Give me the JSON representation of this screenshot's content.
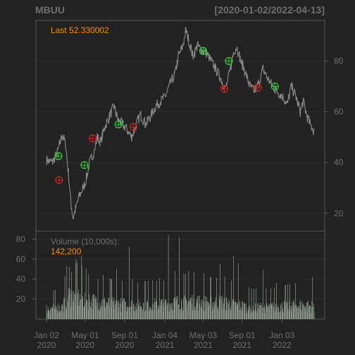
{
  "header": {
    "symbol": "MBUU",
    "date_range": "[2020-01-02/2022-04-13]"
  },
  "colors": {
    "background": "#222222",
    "price_line": "#8a8a8a",
    "grid": "#2c2c2c",
    "frame": "#555555",
    "buy_marker": "#33cc33",
    "sell_marker": "#cc2222",
    "text": "#6e6e6e",
    "highlight": "#ff8c00",
    "volume_bar": "#8f9a8f"
  },
  "chart_data": [
    {
      "type": "line",
      "panel": "price",
      "last_label": "Last 52.330002",
      "ylim": [
        13,
        96
      ],
      "yticks": [
        20,
        40,
        60,
        80
      ],
      "grid": true,
      "xticks": [
        {
          "date": "2020-01-02",
          "line1": "Jan 02",
          "line2": "2020"
        },
        {
          "date": "2020-05-01",
          "line1": "May 01",
          "line2": "2020"
        },
        {
          "date": "2020-09-01",
          "line1": "Sep 01",
          "line2": "2020"
        },
        {
          "date": "2021-01-04",
          "line1": "Jan 04",
          "line2": "2021"
        },
        {
          "date": "2021-05-03",
          "line1": "May 03",
          "line2": "2021"
        },
        {
          "date": "2021-09-01",
          "line1": "Sep 01",
          "line2": "2021"
        },
        {
          "date": "2022-01-03",
          "line1": "Jan 03",
          "line2": "2022"
        }
      ],
      "series": [
        {
          "values": [
            [
              "2020-01-02",
              41
            ],
            [
              "2020-01-20",
              40
            ],
            [
              "2020-02-05",
              44
            ],
            [
              "2020-02-20",
              51
            ],
            [
              "2020-03-02",
              47
            ],
            [
              "2020-03-10",
              36
            ],
            [
              "2020-03-18",
              24
            ],
            [
              "2020-03-25",
              18
            ],
            [
              "2020-04-02",
              22
            ],
            [
              "2020-04-14",
              27
            ],
            [
              "2020-04-25",
              30
            ],
            [
              "2020-05-05",
              34
            ],
            [
              "2020-05-15",
              40
            ],
            [
              "2020-05-28",
              44
            ],
            [
              "2020-06-08",
              50
            ],
            [
              "2020-06-18",
              48
            ],
            [
              "2020-07-01",
              54
            ],
            [
              "2020-07-15",
              58
            ],
            [
              "2020-07-30",
              62
            ],
            [
              "2020-08-10",
              57
            ],
            [
              "2020-08-25",
              55
            ],
            [
              "2020-09-08",
              53
            ],
            [
              "2020-09-22",
              50
            ],
            [
              "2020-10-05",
              54
            ],
            [
              "2020-10-20",
              59
            ],
            [
              "2020-11-05",
              55
            ],
            [
              "2020-11-20",
              58
            ],
            [
              "2020-12-05",
              62
            ],
            [
              "2020-12-20",
              64
            ],
            [
              "2021-01-05",
              66
            ],
            [
              "2021-01-20",
              71
            ],
            [
              "2021-02-05",
              75
            ],
            [
              "2021-02-15",
              82
            ],
            [
              "2021-03-01",
              86
            ],
            [
              "2021-03-10",
              92
            ],
            [
              "2021-03-20",
              88
            ],
            [
              "2021-04-01",
              82
            ],
            [
              "2021-04-15",
              86
            ],
            [
              "2021-05-01",
              84
            ],
            [
              "2021-05-15",
              83
            ],
            [
              "2021-06-01",
              79
            ],
            [
              "2021-06-15",
              76
            ],
            [
              "2021-07-01",
              72
            ],
            [
              "2021-07-12",
              69
            ],
            [
              "2021-07-25",
              76
            ],
            [
              "2021-08-05",
              83
            ],
            [
              "2021-08-15",
              86
            ],
            [
              "2021-08-28",
              80
            ],
            [
              "2021-09-10",
              76
            ],
            [
              "2021-09-25",
              70
            ],
            [
              "2021-10-10",
              68
            ],
            [
              "2021-10-25",
              72
            ],
            [
              "2021-11-05",
              77
            ],
            [
              "2021-11-20",
              73
            ],
            [
              "2021-12-05",
              70
            ],
            [
              "2021-12-20",
              68
            ],
            [
              "2022-01-05",
              66
            ],
            [
              "2022-01-20",
              63
            ],
            [
              "2022-02-01",
              70
            ],
            [
              "2022-02-15",
              66
            ],
            [
              "2022-03-01",
              60
            ],
            [
              "2022-03-10",
              64
            ],
            [
              "2022-03-22",
              58
            ],
            [
              "2022-04-01",
              55
            ],
            [
              "2022-04-13",
              52.33
            ]
          ]
        }
      ],
      "signals": [
        {
          "date": "2020-02-08",
          "value": 42.5,
          "kind": "buy"
        },
        {
          "date": "2020-02-10",
          "value": 33,
          "kind": "sell"
        },
        {
          "date": "2020-04-29",
          "value": 39,
          "kind": "buy"
        },
        {
          "date": "2020-05-25",
          "value": 49.5,
          "kind": "sell"
        },
        {
          "date": "2020-08-13",
          "value": 55,
          "kind": "buy"
        },
        {
          "date": "2020-09-28",
          "value": 54,
          "kind": "sell"
        },
        {
          "date": "2021-05-03",
          "value": 84,
          "kind": "buy"
        },
        {
          "date": "2021-07-08",
          "value": 69,
          "kind": "sell"
        },
        {
          "date": "2021-07-22",
          "value": 80,
          "kind": "buy"
        },
        {
          "date": "2021-10-20",
          "value": 69.5,
          "kind": "sell"
        },
        {
          "date": "2021-12-12",
          "value": 70,
          "kind": "buy"
        }
      ]
    },
    {
      "type": "bar",
      "panel": "volume",
      "label": "Volume (10,000s):",
      "last_value": "142,200",
      "ylim": [
        0,
        88
      ],
      "yticks": [
        20,
        40,
        60,
        80
      ],
      "grid": true,
      "typical": [
        [
          "2020-01-02",
          10
        ],
        [
          "2020-02-20",
          11
        ],
        [
          "2020-03-10",
          22
        ],
        [
          "2020-04-10",
          20
        ],
        [
          "2020-05-20",
          17
        ],
        [
          "2020-07-01",
          15
        ],
        [
          "2020-08-15",
          14
        ],
        [
          "2020-10-01",
          13
        ],
        [
          "2020-11-15",
          14
        ],
        [
          "2021-01-01",
          14
        ],
        [
          "2021-02-15",
          16
        ],
        [
          "2021-04-01",
          17
        ],
        [
          "2021-05-15",
          15
        ],
        [
          "2021-07-01",
          16
        ],
        [
          "2021-08-15",
          13
        ],
        [
          "2021-10-01",
          11
        ],
        [
          "2021-11-15",
          11
        ],
        [
          "2022-01-01",
          12
        ],
        [
          "2022-02-15",
          13
        ],
        [
          "2022-04-13",
          12
        ]
      ],
      "spikes": [
        [
          "2020-03-13",
          52
        ],
        [
          "2020-03-20",
          47
        ],
        [
          "2020-04-03",
          60
        ],
        [
          "2020-04-20",
          63
        ],
        [
          "2020-05-12",
          45
        ],
        [
          "2020-06-10",
          40
        ],
        [
          "2020-06-26",
          44
        ],
        [
          "2020-08-07",
          50
        ],
        [
          "2020-09-15",
          72
        ],
        [
          "2020-09-25",
          40
        ],
        [
          "2020-11-04",
          38
        ],
        [
          "2020-12-18",
          41
        ],
        [
          "2021-01-15",
          84
        ],
        [
          "2021-02-05",
          48
        ],
        [
          "2021-02-18",
          82
        ],
        [
          "2021-03-19",
          48
        ],
        [
          "2021-05-05",
          46
        ],
        [
          "2021-06-14",
          41
        ],
        [
          "2021-06-25",
          55
        ],
        [
          "2021-08-05",
          63
        ],
        [
          "2021-08-20",
          56
        ],
        [
          "2021-11-05",
          49
        ],
        [
          "2021-12-17",
          36
        ],
        [
          "2022-04-08",
          42
        ]
      ]
    }
  ]
}
